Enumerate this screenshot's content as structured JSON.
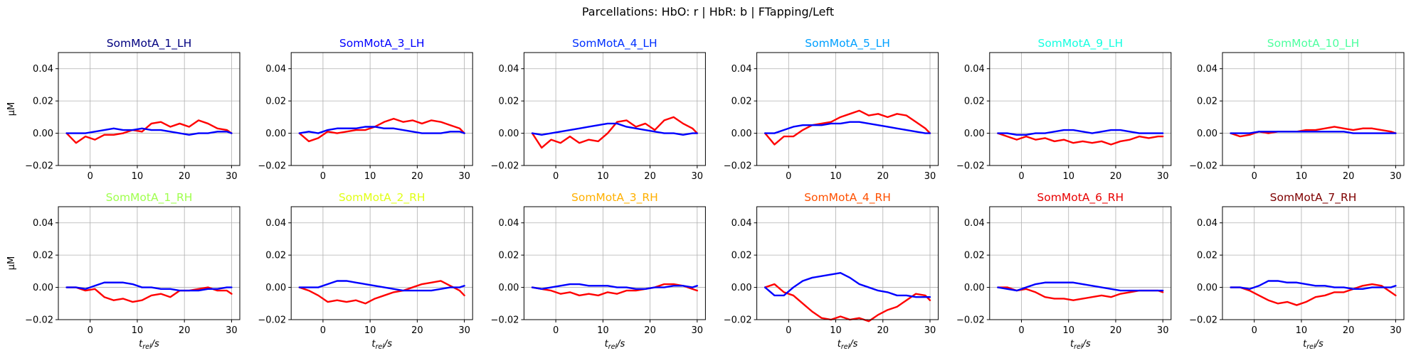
{
  "suptitle": "Parcellations: HbO: r | HbR: b | FTapping/Left",
  "series_colors": {
    "hbo": "#ff0000",
    "hbr": "#0000ff"
  },
  "ylabel": "µM",
  "xlabel_base": "t",
  "xlabel_sub": "rel",
  "xlabel_unit": "/s",
  "xticks": [
    0,
    10,
    20,
    30
  ],
  "yticks": [
    -0.02,
    0.0,
    0.02,
    0.04
  ],
  "ytick_labels": [
    "−0.02",
    "0.00",
    "0.02",
    "0.04"
  ],
  "xlim": [
    -6.75,
    31.75
  ],
  "ylim": [
    -0.02,
    0.05
  ],
  "chart_data": [
    {
      "type": "line",
      "title": "SomMotA_1_LH",
      "title_color": "#00007f",
      "x": [
        -5,
        -3,
        -1,
        1,
        3,
        5,
        7,
        9,
        11,
        13,
        15,
        17,
        19,
        21,
        23,
        25,
        27,
        29,
        30
      ],
      "series": [
        {
          "values": [
            0.0,
            -0.006,
            -0.002,
            -0.004,
            -0.001,
            -0.001,
            0.0,
            0.002,
            0.001,
            0.006,
            0.007,
            0.004,
            0.006,
            0.004,
            0.008,
            0.006,
            0.003,
            0.002,
            0.0
          ]
        },
        {
          "values": [
            0.0,
            0.0,
            0.0,
            0.001,
            0.002,
            0.003,
            0.002,
            0.002,
            0.003,
            0.002,
            0.002,
            0.001,
            0.0,
            -0.001,
            0.0,
            0.0,
            0.001,
            0.001,
            0.0
          ]
        }
      ]
    },
    {
      "type": "line",
      "title": "SomMotA_3_LH",
      "title_color": "#0000ff",
      "x": [
        -5,
        -3,
        -1,
        1,
        3,
        5,
        7,
        9,
        11,
        13,
        15,
        17,
        19,
        21,
        23,
        25,
        27,
        29,
        30
      ],
      "series": [
        {
          "values": [
            0.0,
            -0.005,
            -0.003,
            0.001,
            0.0,
            0.001,
            0.002,
            0.002,
            0.004,
            0.007,
            0.009,
            0.007,
            0.008,
            0.006,
            0.008,
            0.007,
            0.005,
            0.003,
            0.0
          ]
        },
        {
          "values": [
            0.0,
            0.001,
            0.0,
            0.002,
            0.003,
            0.003,
            0.003,
            0.004,
            0.004,
            0.003,
            0.003,
            0.002,
            0.001,
            0.0,
            0.0,
            0.0,
            0.001,
            0.001,
            0.0
          ]
        }
      ]
    },
    {
      "type": "line",
      "title": "SomMotA_4_LH",
      "title_color": "#0030ff",
      "x": [
        -5,
        -3,
        -1,
        1,
        3,
        5,
        7,
        9,
        11,
        13,
        15,
        17,
        19,
        21,
        23,
        25,
        27,
        29,
        30
      ],
      "series": [
        {
          "values": [
            0.0,
            -0.009,
            -0.004,
            -0.006,
            -0.002,
            -0.006,
            -0.004,
            -0.005,
            0.0,
            0.007,
            0.008,
            0.004,
            0.006,
            0.002,
            0.008,
            0.01,
            0.006,
            0.003,
            0.0
          ]
        },
        {
          "values": [
            0.0,
            -0.001,
            0.0,
            0.001,
            0.002,
            0.003,
            0.004,
            0.005,
            0.006,
            0.006,
            0.004,
            0.003,
            0.002,
            0.001,
            0.0,
            0.0,
            -0.001,
            0.0,
            0.0
          ]
        }
      ]
    },
    {
      "type": "line",
      "title": "SomMotA_5_LH",
      "title_color": "#00a0ff",
      "x": [
        -5,
        -3,
        -1,
        1,
        3,
        5,
        7,
        9,
        11,
        13,
        15,
        17,
        19,
        21,
        23,
        25,
        27,
        29,
        30
      ],
      "series": [
        {
          "values": [
            0.0,
            -0.007,
            -0.002,
            -0.002,
            0.002,
            0.005,
            0.006,
            0.007,
            0.01,
            0.012,
            0.014,
            0.011,
            0.012,
            0.01,
            0.012,
            0.011,
            0.007,
            0.003,
            0.0
          ]
        },
        {
          "values": [
            0.0,
            0.0,
            0.002,
            0.004,
            0.005,
            0.005,
            0.005,
            0.006,
            0.006,
            0.007,
            0.007,
            0.006,
            0.005,
            0.004,
            0.003,
            0.002,
            0.001,
            0.0,
            0.0
          ]
        }
      ]
    },
    {
      "type": "line",
      "title": "SomMotA_9_LH",
      "title_color": "#16ffe1",
      "x": [
        -5,
        -3,
        -1,
        1,
        3,
        5,
        7,
        9,
        11,
        13,
        15,
        17,
        19,
        21,
        23,
        25,
        27,
        29,
        30
      ],
      "series": [
        {
          "values": [
            0.0,
            -0.002,
            -0.004,
            -0.002,
            -0.004,
            -0.003,
            -0.005,
            -0.004,
            -0.006,
            -0.005,
            -0.006,
            -0.005,
            -0.007,
            -0.005,
            -0.004,
            -0.002,
            -0.003,
            -0.002,
            -0.002
          ]
        },
        {
          "values": [
            0.0,
            0.0,
            -0.001,
            -0.001,
            0.0,
            0.0,
            0.001,
            0.002,
            0.002,
            0.001,
            0.0,
            0.001,
            0.002,
            0.002,
            0.001,
            0.0,
            0.0,
            0.0,
            0.0
          ]
        }
      ]
    },
    {
      "type": "line",
      "title": "SomMotA_10_LH",
      "title_color": "#4dff9f",
      "x": [
        -5,
        -3,
        -1,
        1,
        3,
        5,
        7,
        9,
        11,
        13,
        15,
        17,
        19,
        21,
        23,
        25,
        27,
        29,
        30
      ],
      "series": [
        {
          "values": [
            0.0,
            -0.002,
            -0.001,
            0.001,
            0.0,
            0.001,
            0.001,
            0.001,
            0.002,
            0.002,
            0.003,
            0.004,
            0.003,
            0.002,
            0.003,
            0.003,
            0.002,
            0.001,
            0.0
          ]
        },
        {
          "values": [
            0.0,
            0.0,
            0.0,
            0.001,
            0.001,
            0.001,
            0.001,
            0.001,
            0.001,
            0.001,
            0.001,
            0.001,
            0.001,
            0.0,
            0.0,
            0.0,
            0.0,
            0.0,
            0.0
          ]
        }
      ]
    },
    {
      "type": "line",
      "title": "SomMotA_1_RH",
      "title_color": "#9fff4d",
      "x": [
        -5,
        -3,
        -1,
        1,
        3,
        5,
        7,
        9,
        11,
        13,
        15,
        17,
        19,
        21,
        23,
        25,
        27,
        29,
        30
      ],
      "series": [
        {
          "values": [
            0.0,
            0.0,
            -0.002,
            -0.001,
            -0.006,
            -0.008,
            -0.007,
            -0.009,
            -0.008,
            -0.005,
            -0.004,
            -0.006,
            -0.002,
            -0.002,
            -0.001,
            0.0,
            -0.002,
            -0.002,
            -0.004
          ]
        },
        {
          "values": [
            0.0,
            0.0,
            -0.001,
            0.001,
            0.003,
            0.003,
            0.003,
            0.002,
            0.0,
            0.0,
            -0.001,
            -0.001,
            -0.002,
            -0.002,
            -0.002,
            -0.001,
            -0.001,
            0.0,
            0.0
          ]
        }
      ]
    },
    {
      "type": "line",
      "title": "SomMotA_2_RH",
      "title_color": "#e1ff16",
      "x": [
        -5,
        -3,
        -1,
        1,
        3,
        5,
        7,
        9,
        11,
        13,
        15,
        17,
        19,
        21,
        23,
        25,
        27,
        29,
        30
      ],
      "series": [
        {
          "values": [
            0.0,
            -0.002,
            -0.005,
            -0.009,
            -0.008,
            -0.009,
            -0.008,
            -0.01,
            -0.007,
            -0.005,
            -0.003,
            -0.002,
            0.0,
            0.002,
            0.003,
            0.004,
            0.001,
            -0.002,
            -0.005
          ]
        },
        {
          "values": [
            0.0,
            0.0,
            0.0,
            0.002,
            0.004,
            0.004,
            0.003,
            0.002,
            0.001,
            0.0,
            -0.001,
            -0.002,
            -0.002,
            -0.002,
            -0.002,
            -0.001,
            0.0,
            0.0,
            0.001
          ]
        }
      ]
    },
    {
      "type": "line",
      "title": "SomMotA_3_RH",
      "title_color": "#ffb000",
      "x": [
        -5,
        -3,
        -1,
        1,
        3,
        5,
        7,
        9,
        11,
        13,
        15,
        17,
        19,
        21,
        23,
        25,
        27,
        29,
        30
      ],
      "series": [
        {
          "values": [
            0.0,
            -0.001,
            -0.002,
            -0.004,
            -0.003,
            -0.005,
            -0.004,
            -0.005,
            -0.003,
            -0.004,
            -0.002,
            -0.002,
            -0.001,
            0.0,
            0.002,
            0.002,
            0.001,
            -0.001,
            -0.002
          ]
        },
        {
          "values": [
            0.0,
            -0.001,
            0.0,
            0.001,
            0.002,
            0.002,
            0.001,
            0.001,
            0.001,
            0.0,
            0.0,
            -0.001,
            -0.001,
            0.0,
            0.0,
            0.001,
            0.001,
            0.0,
            0.001
          ]
        }
      ]
    },
    {
      "type": "line",
      "title": "SomMotA_4_RH",
      "title_color": "#ff5000",
      "x": [
        -5,
        -3,
        -1,
        1,
        3,
        5,
        7,
        9,
        11,
        13,
        15,
        17,
        19,
        21,
        23,
        25,
        27,
        29,
        30
      ],
      "series": [
        {
          "values": [
            0.0,
            0.002,
            -0.003,
            -0.005,
            -0.01,
            -0.015,
            -0.019,
            -0.02,
            -0.018,
            -0.02,
            -0.019,
            -0.021,
            -0.017,
            -0.014,
            -0.012,
            -0.008,
            -0.004,
            -0.005,
            -0.008
          ]
        },
        {
          "values": [
            0.0,
            -0.005,
            -0.005,
            0.0,
            0.004,
            0.006,
            0.007,
            0.008,
            0.009,
            0.006,
            0.002,
            0.0,
            -0.002,
            -0.003,
            -0.005,
            -0.005,
            -0.006,
            -0.006,
            -0.006
          ]
        }
      ]
    },
    {
      "type": "line",
      "title": "SomMotA_6_RH",
      "title_color": "#e80000",
      "x": [
        -5,
        -3,
        -1,
        1,
        3,
        5,
        7,
        9,
        11,
        13,
        15,
        17,
        19,
        21,
        23,
        25,
        27,
        29,
        30
      ],
      "series": [
        {
          "values": [
            0.0,
            0.0,
            -0.002,
            -0.001,
            -0.003,
            -0.006,
            -0.007,
            -0.007,
            -0.008,
            -0.007,
            -0.006,
            -0.005,
            -0.006,
            -0.004,
            -0.003,
            -0.002,
            -0.002,
            -0.002,
            -0.003
          ]
        },
        {
          "values": [
            0.0,
            -0.001,
            -0.002,
            0.0,
            0.002,
            0.003,
            0.003,
            0.003,
            0.003,
            0.002,
            0.001,
            0.0,
            -0.001,
            -0.002,
            -0.002,
            -0.002,
            -0.002,
            -0.002,
            -0.002
          ]
        }
      ]
    },
    {
      "type": "line",
      "title": "SomMotA_7_RH",
      "title_color": "#7f0000",
      "x": [
        -5,
        -3,
        -1,
        1,
        3,
        5,
        7,
        9,
        11,
        13,
        15,
        17,
        19,
        21,
        23,
        25,
        27,
        29,
        30
      ],
      "series": [
        {
          "values": [
            0.0,
            0.0,
            -0.002,
            -0.005,
            -0.008,
            -0.01,
            -0.009,
            -0.011,
            -0.009,
            -0.006,
            -0.005,
            -0.003,
            -0.003,
            -0.001,
            0.001,
            0.002,
            0.001,
            -0.003,
            -0.005
          ]
        },
        {
          "values": [
            0.0,
            0.0,
            -0.001,
            0.001,
            0.004,
            0.004,
            0.003,
            0.003,
            0.002,
            0.001,
            0.001,
            0.0,
            0.0,
            -0.001,
            -0.001,
            0.0,
            0.0,
            0.0,
            0.001
          ]
        }
      ]
    }
  ]
}
